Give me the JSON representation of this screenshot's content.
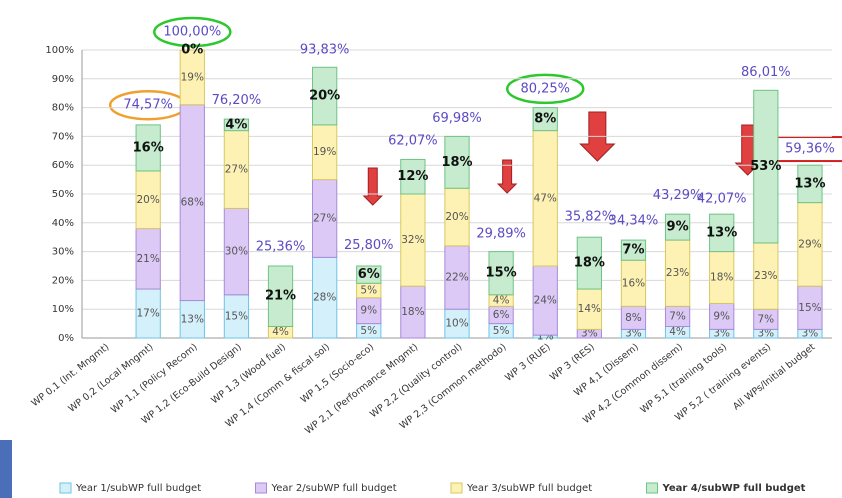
{
  "chart_data": {
    "type": "stacked-bar",
    "categories": [
      "WP 0,1 (Int. Mngmt)",
      "WP 0,2 (Local Mngmt)",
      "WP 1,1 (Policy Recom)",
      "WP 1,2 (Eco-Build Design)",
      "WP 1,3 (Wood fuel)",
      "WP 1,4 (Comm & fiscal sol)",
      "WP 1,5 (Socio-eco)",
      "WP 2,1 (Performance Mngmt)",
      "WP 2,2 (Quality control)",
      "WP 2,3 (Common methodo)",
      "WP 3 (RUE)",
      "WP 3 (RES)",
      "WP 4,1 (Dissem)",
      "WP 4,2 (Common dissem)",
      "WP 5,1 (training tools)",
      "WP 5,2 ( training events)",
      "All WPs/Initial budget"
    ],
    "series": [
      {
        "name": "Year 1/subWP full budget",
        "color": "#d4f0fb",
        "stroke": "#6fc3e6",
        "values": [
          0,
          17,
          13,
          15,
          0,
          28,
          5,
          0,
          10,
          5,
          1,
          0,
          3,
          4,
          3,
          3,
          3
        ],
        "value_labels": [
          null,
          "17%",
          "13%",
          "15%",
          null,
          "28%",
          "5%",
          null,
          "10%",
          "5%",
          "1%",
          null,
          "3%",
          "4%",
          "3%",
          "3%",
          "3%"
        ]
      },
      {
        "name": "Year 2/subWP full budget",
        "color": "#dcc9f6",
        "stroke": "#a98ad9",
        "values": [
          0,
          21,
          68,
          30,
          0,
          27,
          9,
          18,
          22,
          6,
          24,
          3,
          8,
          7,
          9,
          7,
          15
        ],
        "value_labels": [
          null,
          "21%",
          "68%",
          "30%",
          null,
          "27%",
          "9%",
          "18%",
          "22%",
          "6%",
          "24%",
          "3%",
          "8%",
          "7%",
          "9%",
          "7%",
          "15%"
        ]
      },
      {
        "name": "Year 3/subWP full budget",
        "color": "#fdf2b3",
        "stroke": "#d9c860",
        "values": [
          0,
          20,
          19,
          27,
          4,
          19,
          5,
          32,
          20,
          4,
          47,
          14,
          16,
          23,
          18,
          23,
          29
        ],
        "value_labels": [
          null,
          "20%",
          "19%",
          "27%",
          "4%",
          "19%",
          "5%",
          "32%",
          "20%",
          "4%",
          "47%",
          "14%",
          "16%",
          "23%",
          "18%",
          "23%",
          "29%"
        ]
      },
      {
        "name": "Year 4/subWP full budget",
        "color": "#c6ebcf",
        "stroke": "#6ec385",
        "values": [
          0,
          16,
          0,
          4,
          21,
          20,
          6,
          12,
          18,
          15,
          8,
          18,
          7,
          9,
          13,
          53,
          13
        ],
        "value_labels": [
          null,
          "16%",
          "0%",
          "4%",
          "21%",
          "20%",
          "6%",
          "12%",
          "18%",
          "15%",
          "8%",
          "18%",
          "7%",
          "9%",
          "13%",
          "53%",
          "13%"
        ]
      }
    ],
    "totals": {
      "values": [
        null,
        74.57,
        100.0,
        76.2,
        25.36,
        93.83,
        25.8,
        62.07,
        69.98,
        29.89,
        80.25,
        35.82,
        34.34,
        43.29,
        42.07,
        86.01,
        59.36
      ],
      "value_labels": [
        null,
        "74,57%",
        "100,00%",
        "76,20%",
        "25,36%",
        "93,83%",
        "25,80%",
        "62,07%",
        "69,98%",
        "29,89%",
        "80,25%",
        "35,82%",
        "34,34%",
        "43,29%",
        "42,07%",
        "86,01%",
        "59,36%"
      ]
    },
    "ylim": [
      0,
      100
    ],
    "yticks": [
      {
        "value": 0,
        "label": "0%"
      },
      {
        "value": 10,
        "label": "10%"
      },
      {
        "value": 20,
        "label": "20%"
      },
      {
        "value": 30,
        "label": "30%"
      },
      {
        "value": 40,
        "label": "40%"
      },
      {
        "value": 50,
        "label": "50%"
      },
      {
        "value": 60,
        "label": "60%"
      },
      {
        "value": 70,
        "label": "70%"
      },
      {
        "value": 80,
        "label": "80%"
      },
      {
        "value": 90,
        "label": "90%"
      },
      {
        "value": 100,
        "label": "100%"
      }
    ],
    "grid": true,
    "legend": "bottom"
  }
}
